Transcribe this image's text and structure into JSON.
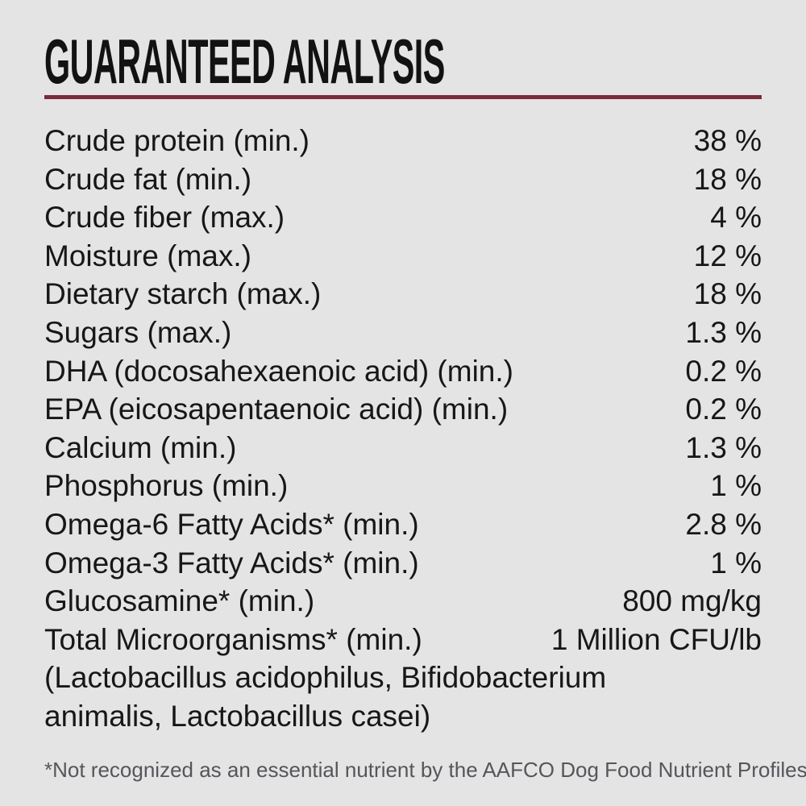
{
  "label": {
    "title": "GUARANTEED ANALYSIS",
    "rows": [
      {
        "label": "Crude protein (min.)",
        "value": "38 %"
      },
      {
        "label": "Crude fat (min.)",
        "value": "18 %"
      },
      {
        "label": "Crude fiber (max.)",
        "value": "4 %"
      },
      {
        "label": "Moisture (max.)",
        "value": "12 %"
      },
      {
        "label": "Dietary starch (max.)",
        "value": "18 %"
      },
      {
        "label": "Sugars (max.)",
        "value": "1.3 %"
      },
      {
        "label": "DHA (docosahexaenoic acid) (min.)",
        "value": "0.2 %"
      },
      {
        "label": "EPA (eicosapentaenoic acid) (min.)",
        "value": "0.2 %"
      },
      {
        "label": "Calcium (min.)",
        "value": "1.3 %"
      },
      {
        "label": "Phosphorus (min.)",
        "value": "1 %"
      },
      {
        "label": "Omega-6 Fatty Acids* (min.)",
        "value": "2.8 %"
      },
      {
        "label": "Omega-3 Fatty Acids* (min.)",
        "value": "1 %"
      },
      {
        "label": "Glucosamine* (min.)",
        "value": "800 mg/kg"
      },
      {
        "label": "Total Microorganisms* (min.)",
        "value": "1 Million CFU/lb"
      }
    ],
    "microorganism_species_lines": [
      "(Lactobacillus acidophilus, Bifidobacterium",
      "animalis, Lactobacillus casei)"
    ],
    "footnote": "*Not recognized as an essential nutrient by the AAFCO Dog Food Nutrient Profiles"
  },
  "colors": {
    "background": "#e4e4e5",
    "text": "#171717",
    "rule": "#7b2b3b",
    "footnote": "#54565a"
  }
}
